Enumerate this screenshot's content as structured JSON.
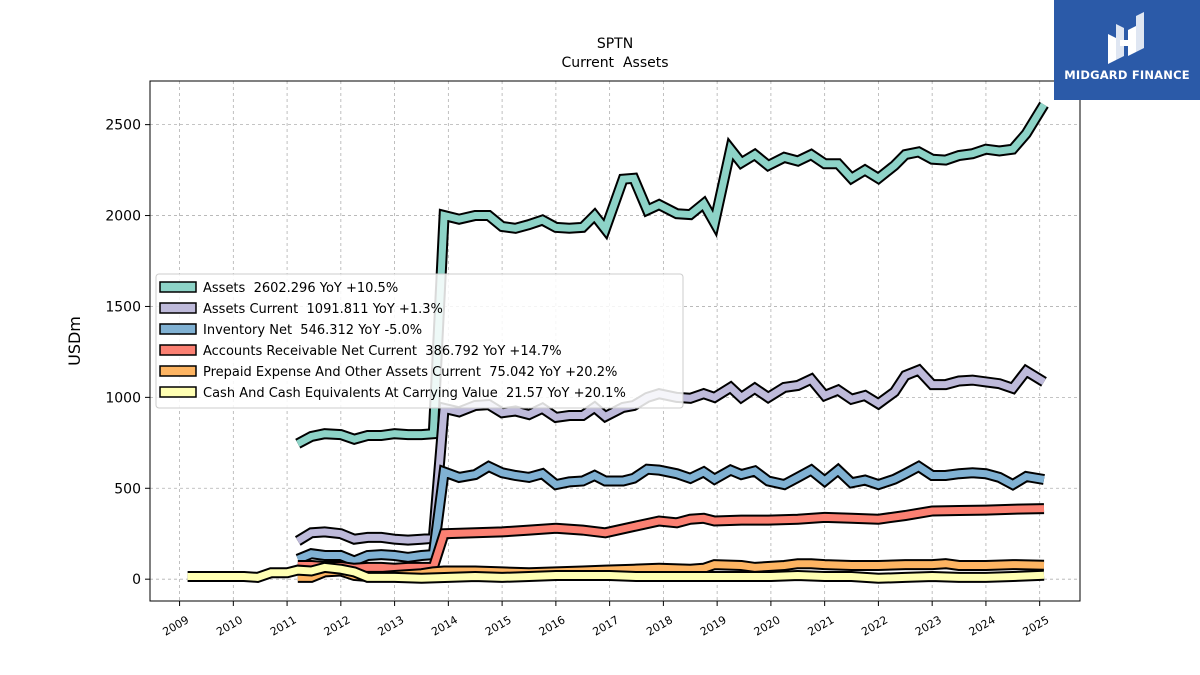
{
  "chart_data": {
    "type": "area",
    "title": "SPTN",
    "subtitle": "Current  Assets",
    "ylabel": "USDm",
    "xlabel": "",
    "ylim": [
      -120,
      2740
    ],
    "xlim": [
      2008.45,
      2025.75
    ],
    "yticks": [
      0,
      500,
      1000,
      1500,
      2000,
      2500
    ],
    "xticks": [
      "2009",
      "2010",
      "2011",
      "2012",
      "2013",
      "2014",
      "2015",
      "2016",
      "2017",
      "2018",
      "2019",
      "2020",
      "2021",
      "2022",
      "2023",
      "2024",
      "2025"
    ],
    "grid": true,
    "legend_position": "center-left",
    "series": [
      {
        "name": "Assets  2602.296 YoY +10.5%",
        "color": "#8dd3c7",
        "points": [
          [
            2011.2,
            745
          ],
          [
            2011.45,
            785
          ],
          [
            2011.7,
            800
          ],
          [
            2012.0,
            795
          ],
          [
            2012.25,
            770
          ],
          [
            2012.5,
            790
          ],
          [
            2012.75,
            790
          ],
          [
            2013.0,
            800
          ],
          [
            2013.25,
            795
          ],
          [
            2013.5,
            795
          ],
          [
            2013.72,
            800
          ],
          [
            2013.92,
            2000
          ],
          [
            2014.2,
            1980
          ],
          [
            2014.5,
            2000
          ],
          [
            2014.75,
            2000
          ],
          [
            2015.0,
            1940
          ],
          [
            2015.25,
            1930
          ],
          [
            2015.5,
            1950
          ],
          [
            2015.75,
            1975
          ],
          [
            2016.0,
            1935
          ],
          [
            2016.25,
            1930
          ],
          [
            2016.5,
            1935
          ],
          [
            2016.72,
            2000
          ],
          [
            2016.92,
            1925
          ],
          [
            2017.25,
            2200
          ],
          [
            2017.45,
            2205
          ],
          [
            2017.7,
            2030
          ],
          [
            2017.92,
            2060
          ],
          [
            2018.25,
            2010
          ],
          [
            2018.5,
            2005
          ],
          [
            2018.75,
            2065
          ],
          [
            2018.95,
            1960
          ],
          [
            2019.25,
            2365
          ],
          [
            2019.45,
            2290
          ],
          [
            2019.7,
            2335
          ],
          [
            2019.95,
            2275
          ],
          [
            2020.25,
            2320
          ],
          [
            2020.5,
            2300
          ],
          [
            2020.75,
            2335
          ],
          [
            2021.0,
            2285
          ],
          [
            2021.25,
            2285
          ],
          [
            2021.5,
            2205
          ],
          [
            2021.75,
            2250
          ],
          [
            2022.0,
            2205
          ],
          [
            2022.3,
            2275
          ],
          [
            2022.5,
            2335
          ],
          [
            2022.75,
            2350
          ],
          [
            2023.0,
            2310
          ],
          [
            2023.25,
            2305
          ],
          [
            2023.5,
            2330
          ],
          [
            2023.75,
            2340
          ],
          [
            2024.0,
            2365
          ],
          [
            2024.25,
            2355
          ],
          [
            2024.5,
            2365
          ],
          [
            2024.75,
            2450
          ],
          [
            2025.08,
            2610
          ]
        ]
      },
      {
        "name": "Assets Current  1091.811 YoY +1.3%",
        "color": "#bebada",
        "points": [
          [
            2011.2,
            210
          ],
          [
            2011.45,
            255
          ],
          [
            2011.7,
            260
          ],
          [
            2012.0,
            250
          ],
          [
            2012.25,
            220
          ],
          [
            2012.5,
            230
          ],
          [
            2012.75,
            230
          ],
          [
            2013.0,
            220
          ],
          [
            2013.25,
            215
          ],
          [
            2013.5,
            220
          ],
          [
            2013.72,
            225
          ],
          [
            2013.92,
            940
          ],
          [
            2014.2,
            920
          ],
          [
            2014.5,
            955
          ],
          [
            2014.75,
            960
          ],
          [
            2015.0,
            915
          ],
          [
            2015.25,
            925
          ],
          [
            2015.5,
            905
          ],
          [
            2015.75,
            940
          ],
          [
            2016.0,
            890
          ],
          [
            2016.25,
            900
          ],
          [
            2016.5,
            900
          ],
          [
            2016.72,
            945
          ],
          [
            2016.92,
            895
          ],
          [
            2017.25,
            945
          ],
          [
            2017.45,
            955
          ],
          [
            2017.7,
            1000
          ],
          [
            2017.92,
            1020
          ],
          [
            2018.25,
            1000
          ],
          [
            2018.5,
            995
          ],
          [
            2018.75,
            1020
          ],
          [
            2018.95,
            1000
          ],
          [
            2019.25,
            1055
          ],
          [
            2019.45,
            1000
          ],
          [
            2019.7,
            1050
          ],
          [
            2019.95,
            1000
          ],
          [
            2020.25,
            1055
          ],
          [
            2020.5,
            1065
          ],
          [
            2020.75,
            1100
          ],
          [
            2021.0,
            1010
          ],
          [
            2021.25,
            1040
          ],
          [
            2021.5,
            990
          ],
          [
            2021.75,
            1010
          ],
          [
            2022.0,
            965
          ],
          [
            2022.3,
            1030
          ],
          [
            2022.5,
            1120
          ],
          [
            2022.75,
            1150
          ],
          [
            2023.0,
            1070
          ],
          [
            2023.25,
            1070
          ],
          [
            2023.5,
            1090
          ],
          [
            2023.75,
            1095
          ],
          [
            2024.0,
            1085
          ],
          [
            2024.25,
            1075
          ],
          [
            2024.5,
            1050
          ],
          [
            2024.75,
            1145
          ],
          [
            2025.08,
            1085
          ]
        ]
      },
      {
        "name": "Inventory Net  546.312 YoY -5.0%",
        "color": "#80b1d3",
        "points": [
          [
            2011.2,
            110
          ],
          [
            2011.45,
            140
          ],
          [
            2011.7,
            130
          ],
          [
            2012.0,
            130
          ],
          [
            2012.25,
            100
          ],
          [
            2012.5,
            130
          ],
          [
            2012.75,
            135
          ],
          [
            2013.0,
            130
          ],
          [
            2013.25,
            120
          ],
          [
            2013.5,
            130
          ],
          [
            2013.72,
            135
          ],
          [
            2013.92,
            590
          ],
          [
            2014.2,
            560
          ],
          [
            2014.5,
            575
          ],
          [
            2014.75,
            620
          ],
          [
            2015.0,
            585
          ],
          [
            2015.25,
            570
          ],
          [
            2015.5,
            560
          ],
          [
            2015.75,
            580
          ],
          [
            2016.0,
            520
          ],
          [
            2016.25,
            535
          ],
          [
            2016.5,
            540
          ],
          [
            2016.72,
            570
          ],
          [
            2016.92,
            540
          ],
          [
            2017.25,
            540
          ],
          [
            2017.45,
            555
          ],
          [
            2017.7,
            605
          ],
          [
            2017.92,
            600
          ],
          [
            2018.25,
            580
          ],
          [
            2018.5,
            555
          ],
          [
            2018.75,
            590
          ],
          [
            2018.95,
            550
          ],
          [
            2019.25,
            600
          ],
          [
            2019.45,
            575
          ],
          [
            2019.7,
            595
          ],
          [
            2019.95,
            540
          ],
          [
            2020.25,
            520
          ],
          [
            2020.5,
            560
          ],
          [
            2020.75,
            600
          ],
          [
            2021.0,
            540
          ],
          [
            2021.25,
            600
          ],
          [
            2021.5,
            530
          ],
          [
            2021.75,
            545
          ],
          [
            2022.0,
            520
          ],
          [
            2022.3,
            550
          ],
          [
            2022.5,
            580
          ],
          [
            2022.75,
            620
          ],
          [
            2023.0,
            570
          ],
          [
            2023.25,
            570
          ],
          [
            2023.5,
            580
          ],
          [
            2023.75,
            585
          ],
          [
            2024.0,
            580
          ],
          [
            2024.25,
            560
          ],
          [
            2024.5,
            520
          ],
          [
            2024.75,
            565
          ],
          [
            2025.08,
            548
          ]
        ]
      },
      {
        "name": "Accounts Receivable Net Current  386.792 YoY +14.7%",
        "color": "#fb8072",
        "points": [
          [
            2011.2,
            75
          ],
          [
            2011.45,
            75
          ],
          [
            2011.7,
            70
          ],
          [
            2012.0,
            70
          ],
          [
            2012.25,
            60
          ],
          [
            2012.5,
            65
          ],
          [
            2012.75,
            65
          ],
          [
            2013.0,
            60
          ],
          [
            2013.25,
            65
          ],
          [
            2013.5,
            65
          ],
          [
            2013.72,
            65
          ],
          [
            2013.92,
            250
          ],
          [
            2014.5,
            255
          ],
          [
            2015.0,
            260
          ],
          [
            2015.5,
            270
          ],
          [
            2016.0,
            280
          ],
          [
            2016.5,
            270
          ],
          [
            2016.92,
            255
          ],
          [
            2017.45,
            290
          ],
          [
            2017.92,
            320
          ],
          [
            2018.25,
            310
          ],
          [
            2018.5,
            330
          ],
          [
            2018.75,
            335
          ],
          [
            2018.95,
            320
          ],
          [
            2019.45,
            325
          ],
          [
            2019.95,
            325
          ],
          [
            2020.5,
            330
          ],
          [
            2021.0,
            340
          ],
          [
            2021.5,
            335
          ],
          [
            2022.0,
            330
          ],
          [
            2022.5,
            350
          ],
          [
            2023.0,
            375
          ],
          [
            2023.5,
            378
          ],
          [
            2024.0,
            380
          ],
          [
            2024.5,
            385
          ],
          [
            2025.08,
            388
          ]
        ]
      },
      {
        "name": "Prepaid Expense And Other Assets Current  75.042 YoY +20.2%",
        "color": "#fdb462",
        "points": [
          [
            2011.2,
            10
          ],
          [
            2011.45,
            10
          ],
          [
            2011.7,
            40
          ],
          [
            2012.0,
            45
          ],
          [
            2012.25,
            20
          ],
          [
            2012.5,
            15
          ],
          [
            2012.75,
            15
          ],
          [
            2013.0,
            20
          ],
          [
            2013.25,
            25
          ],
          [
            2013.5,
            30
          ],
          [
            2013.72,
            40
          ],
          [
            2013.92,
            45
          ],
          [
            2014.5,
            45
          ],
          [
            2015.0,
            40
          ],
          [
            2015.5,
            35
          ],
          [
            2016.0,
            40
          ],
          [
            2016.5,
            45
          ],
          [
            2016.92,
            50
          ],
          [
            2017.45,
            55
          ],
          [
            2017.92,
            60
          ],
          [
            2018.5,
            55
          ],
          [
            2018.75,
            60
          ],
          [
            2018.95,
            80
          ],
          [
            2019.45,
            75
          ],
          [
            2019.7,
            65
          ],
          [
            2019.95,
            70
          ],
          [
            2020.25,
            75
          ],
          [
            2020.5,
            85
          ],
          [
            2020.75,
            85
          ],
          [
            2021.0,
            80
          ],
          [
            2021.5,
            75
          ],
          [
            2022.0,
            75
          ],
          [
            2022.5,
            80
          ],
          [
            2023.0,
            80
          ],
          [
            2023.25,
            85
          ],
          [
            2023.5,
            75
          ],
          [
            2024.0,
            75
          ],
          [
            2024.5,
            80
          ],
          [
            2025.08,
            77
          ]
        ]
      },
      {
        "name": "Cash And Cash Equivalents At Carrying Value  21.57 YoY +20.1%",
        "color": "#ffffb3",
        "points": [
          [
            2009.15,
            15
          ],
          [
            2009.6,
            15
          ],
          [
            2010.2,
            15
          ],
          [
            2010.45,
            10
          ],
          [
            2010.7,
            35
          ],
          [
            2011.0,
            35
          ],
          [
            2011.2,
            50
          ],
          [
            2011.45,
            45
          ],
          [
            2011.7,
            65
          ],
          [
            2012.0,
            55
          ],
          [
            2012.25,
            40
          ],
          [
            2012.5,
            10
          ],
          [
            2013.0,
            10
          ],
          [
            2013.5,
            5
          ],
          [
            2014.0,
            10
          ],
          [
            2014.5,
            15
          ],
          [
            2015.0,
            10
          ],
          [
            2015.5,
            15
          ],
          [
            2016.0,
            20
          ],
          [
            2016.5,
            20
          ],
          [
            2017.0,
            20
          ],
          [
            2017.5,
            15
          ],
          [
            2018.0,
            15
          ],
          [
            2018.5,
            15
          ],
          [
            2019.0,
            15
          ],
          [
            2019.5,
            15
          ],
          [
            2020.0,
            15
          ],
          [
            2020.5,
            20
          ],
          [
            2021.0,
            15
          ],
          [
            2021.5,
            15
          ],
          [
            2022.0,
            5
          ],
          [
            2022.5,
            10
          ],
          [
            2023.0,
            15
          ],
          [
            2023.5,
            10
          ],
          [
            2024.0,
            10
          ],
          [
            2024.5,
            15
          ],
          [
            2025.08,
            22
          ]
        ]
      }
    ]
  },
  "logo": {
    "text": "MIDGARD FINANCE"
  }
}
